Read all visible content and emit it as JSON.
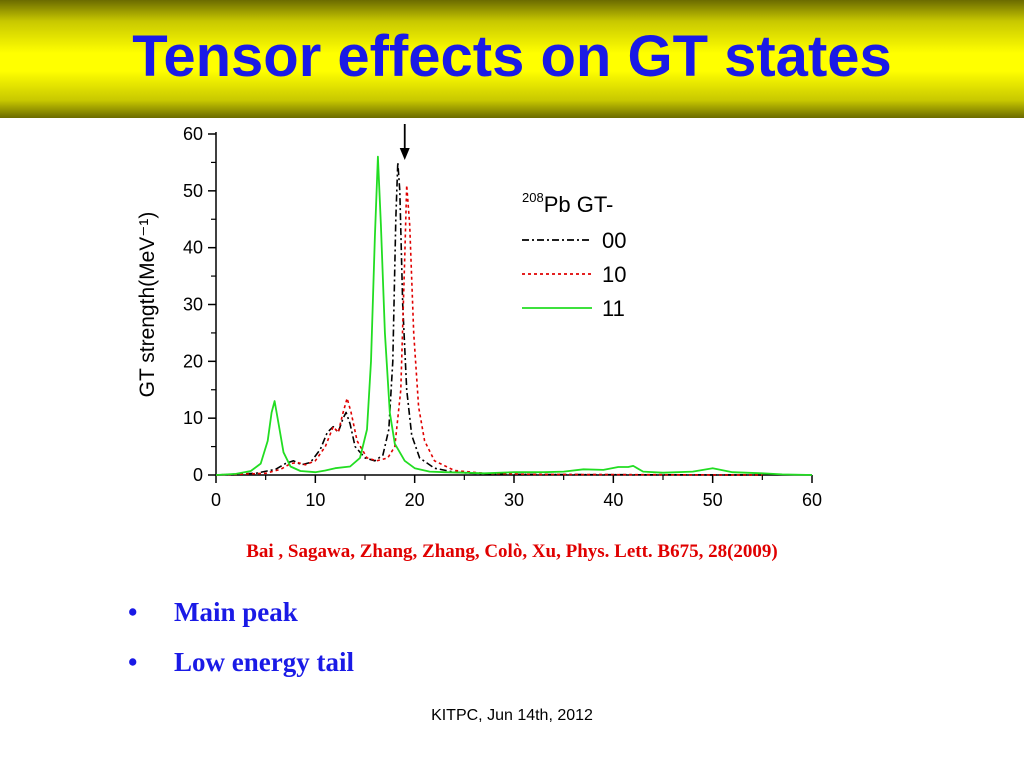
{
  "slide": {
    "title": "Tensor effects on GT states",
    "citation": "Bai , Sagawa, Zhang, Zhang, Colò, Xu, Phys. Lett. B675, 28(2009)",
    "bullets": [
      "Main peak",
      "Low energy tail"
    ],
    "bullet_glyph": "•",
    "footer": "KITPC, Jun 14th, 2012"
  },
  "colors": {
    "title_text": "#1a1ae6",
    "title_bar": "#ffff00",
    "citation": "#e00000",
    "bullets": "#1a1ae6",
    "series_00": "#000000",
    "series_10": "#e00000",
    "series_11": "#22dd22"
  },
  "chart_data": {
    "type": "line",
    "title": "",
    "xlabel": "",
    "ylabel": "GT strength(MeV⁻¹)",
    "xlim": [
      0,
      60
    ],
    "ylim": [
      0,
      60
    ],
    "xticks": [
      0,
      10,
      20,
      30,
      40,
      50,
      60
    ],
    "yticks": [
      0,
      10,
      20,
      30,
      40,
      50,
      60
    ],
    "grid": false,
    "legend": {
      "placement": "top-right",
      "title_sup": "208",
      "title": "Pb GT-"
    },
    "arrow_annotation_x": 19,
    "series": [
      {
        "name": "00",
        "style": "dash-dot",
        "color": "#000000",
        "points": [
          [
            0,
            0
          ],
          [
            4,
            0.3
          ],
          [
            6,
            1
          ],
          [
            7,
            2
          ],
          [
            7.8,
            2.5
          ],
          [
            8.6,
            1.8
          ],
          [
            9.5,
            2.2
          ],
          [
            10.5,
            4.5
          ],
          [
            11.2,
            7.5
          ],
          [
            11.8,
            8.5
          ],
          [
            12.3,
            7.5
          ],
          [
            12.8,
            10
          ],
          [
            13.1,
            11
          ],
          [
            13.5,
            9
          ],
          [
            14,
            5
          ],
          [
            15,
            3
          ],
          [
            16,
            2.5
          ],
          [
            16.8,
            3.5
          ],
          [
            17.4,
            8
          ],
          [
            17.8,
            20
          ],
          [
            18.1,
            45
          ],
          [
            18.3,
            55
          ],
          [
            18.5,
            50
          ],
          [
            18.8,
            30
          ],
          [
            19.2,
            15
          ],
          [
            19.7,
            7
          ],
          [
            20.5,
            3
          ],
          [
            22,
            1.2
          ],
          [
            24,
            0.5
          ],
          [
            27,
            0.2
          ],
          [
            30,
            0.1
          ],
          [
            40,
            0.05
          ],
          [
            55,
            0
          ]
        ]
      },
      {
        "name": "10",
        "style": "dotted",
        "color": "#e00000",
        "points": [
          [
            0,
            0
          ],
          [
            5,
            0.3
          ],
          [
            6.5,
            1
          ],
          [
            7.5,
            2
          ],
          [
            8.2,
            2.2
          ],
          [
            9,
            1.8
          ],
          [
            10,
            2.5
          ],
          [
            11,
            5
          ],
          [
            11.8,
            8.5
          ],
          [
            12.3,
            7.5
          ],
          [
            12.8,
            11
          ],
          [
            13.2,
            13.5
          ],
          [
            13.6,
            11
          ],
          [
            14.2,
            6
          ],
          [
            15.2,
            3
          ],
          [
            16.2,
            2.5
          ],
          [
            17.3,
            3
          ],
          [
            18,
            5
          ],
          [
            18.6,
            15
          ],
          [
            19,
            38
          ],
          [
            19.2,
            51
          ],
          [
            19.5,
            44
          ],
          [
            19.9,
            25
          ],
          [
            20.4,
            12
          ],
          [
            21,
            6
          ],
          [
            22,
            2.5
          ],
          [
            24,
            0.8
          ],
          [
            27,
            0.3
          ],
          [
            32,
            0.1
          ],
          [
            55,
            0
          ]
        ]
      },
      {
        "name": "11",
        "style": "solid",
        "color": "#22dd22",
        "points": [
          [
            0,
            0
          ],
          [
            2,
            0.2
          ],
          [
            3.5,
            0.7
          ],
          [
            4.5,
            2
          ],
          [
            5.2,
            6
          ],
          [
            5.6,
            11
          ],
          [
            5.9,
            13
          ],
          [
            6.3,
            9
          ],
          [
            6.8,
            4
          ],
          [
            7.5,
            1.5
          ],
          [
            8.5,
            0.7
          ],
          [
            10,
            0.5
          ],
          [
            11,
            0.8
          ],
          [
            12,
            1.2
          ],
          [
            13.5,
            1.5
          ],
          [
            14.5,
            3
          ],
          [
            15.2,
            8
          ],
          [
            15.6,
            20
          ],
          [
            16,
            42
          ],
          [
            16.3,
            56
          ],
          [
            16.6,
            44
          ],
          [
            17,
            25
          ],
          [
            17.5,
            11
          ],
          [
            18,
            5.5
          ],
          [
            19,
            2.5
          ],
          [
            20,
            1.2
          ],
          [
            21.5,
            0.6
          ],
          [
            23,
            0.5
          ],
          [
            25,
            0.4
          ],
          [
            27,
            0.3
          ],
          [
            30,
            0.5
          ],
          [
            33,
            0.5
          ],
          [
            35,
            0.6
          ],
          [
            37,
            1
          ],
          [
            39,
            0.9
          ],
          [
            40.5,
            1.4
          ],
          [
            41.5,
            1.4
          ],
          [
            42,
            1.6
          ],
          [
            43,
            0.6
          ],
          [
            45,
            0.4
          ],
          [
            48,
            0.6
          ],
          [
            50,
            1.2
          ],
          [
            52,
            0.5
          ],
          [
            55,
            0.3
          ],
          [
            57,
            0.1
          ],
          [
            60,
            0
          ]
        ]
      }
    ]
  }
}
